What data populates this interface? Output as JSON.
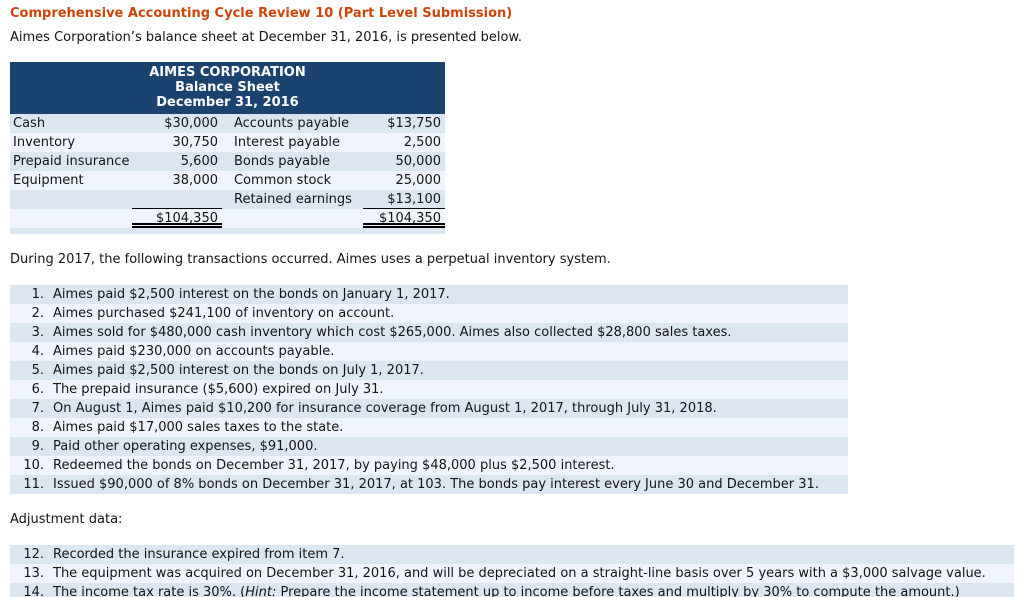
{
  "page": {
    "title": "Comprehensive Accounting Cycle Review 10 (Part Level Submission)",
    "intro": "Aimes Corporation’s balance sheet at December 31, 2016, is presented below.",
    "transactions_intro": "During 2017, the following transactions occurred. Aimes uses a perpetual inventory system.",
    "adjustment_heading": "Adjustment data:"
  },
  "colors": {
    "title_orange": "#CE450C",
    "header_navy": "#1B4370",
    "stripe_pale_blue": "#DCE6F1",
    "stripe_light_blue": "#EFF4FC"
  },
  "balance_sheet": {
    "company": "AIMES CORPORATION",
    "statement": "Balance Sheet",
    "date": "December 31, 2016",
    "rows": [
      {
        "l1": "Cash",
        "a1": "$30,000",
        "l2": "Accounts payable",
        "a2": "$13,750"
      },
      {
        "l1": "Inventory",
        "a1": "30,750",
        "l2": "Interest payable",
        "a2": "2,500"
      },
      {
        "l1": "Prepaid insurance",
        "a1": "5,600",
        "l2": "Bonds payable",
        "a2": "50,000"
      },
      {
        "l1": "Equipment",
        "a1": "38,000",
        "l2": "Common stock",
        "a2": "25,000"
      },
      {
        "l1": "",
        "a1": "",
        "l2": "Retained earnings",
        "a2": "$13,100"
      },
      {
        "l1": "",
        "a1": "$104,350",
        "l2": "",
        "a2": "$104,350"
      }
    ]
  },
  "transactions": [
    {
      "num": "1.",
      "text": "Aimes paid $2,500 interest on the bonds on January 1, 2017."
    },
    {
      "num": "2.",
      "text": "Aimes purchased $241,100 of inventory on account."
    },
    {
      "num": "3.",
      "text": "Aimes sold for $480,000 cash inventory which cost $265,000. Aimes also collected $28,800 sales taxes."
    },
    {
      "num": "4.",
      "text": "Aimes paid $230,000 on accounts payable."
    },
    {
      "num": "5.",
      "text": "Aimes paid $2,500 interest on the bonds on July 1, 2017."
    },
    {
      "num": "6.",
      "text": "The prepaid insurance ($5,600) expired on July 31."
    },
    {
      "num": "7.",
      "text": "On August 1, Aimes paid $10,200 for insurance coverage from August 1, 2017, through July 31, 2018."
    },
    {
      "num": "8.",
      "text": "Aimes paid $17,000 sales taxes to the state."
    },
    {
      "num": "9.",
      "text": "Paid other operating expenses, $91,000."
    },
    {
      "num": "10.",
      "text": "Redeemed the bonds on December 31, 2017, by paying $48,000 plus $2,500 interest."
    },
    {
      "num": "11.",
      "text": "Issued $90,000 of 8% bonds on December 31, 2017, at 103. The bonds pay interest every June 30 and December 31."
    }
  ],
  "adjustments": [
    {
      "num": "12.",
      "text": "Recorded the insurance expired from item 7."
    },
    {
      "num": "13.",
      "text": "The equipment was acquired on December 31, 2016, and will be depreciated on a straight-line basis over 5 years with a $3,000 salvage value."
    },
    {
      "num": "14.",
      "pre": "The income tax rate is 30%. (",
      "hint": "Hint:",
      "post": " Prepare the income statement up to income before taxes and multiply by 30% to compute the amount.)"
    }
  ]
}
